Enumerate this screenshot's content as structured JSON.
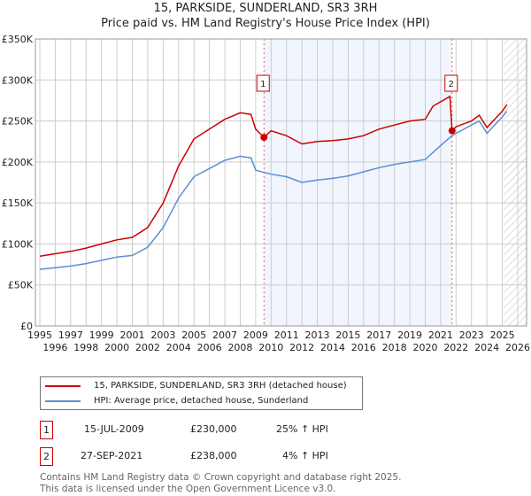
{
  "chart_data": {
    "type": "line",
    "title": "15, PARKSIDE, SUNDERLAND, SR3 3RH",
    "subtitle": "Price paid vs. HM Land Registry's House Price Index (HPI)",
    "xlim": [
      1995,
      2026
    ],
    "ylim": [
      0,
      350000
    ],
    "x_ticks": [
      "1995",
      "1996",
      "1997",
      "1998",
      "1999",
      "2000",
      "2001",
      "2002",
      "2003",
      "2004",
      "2005",
      "2006",
      "2007",
      "2008",
      "2009",
      "2010",
      "2011",
      "2012",
      "2013",
      "2014",
      "2015",
      "2016",
      "2017",
      "2018",
      "2019",
      "2020",
      "2021",
      "2022",
      "2023",
      "2024",
      "2025",
      "2026"
    ],
    "y_ticks": [
      {
        "v": 0,
        "label": "£0"
      },
      {
        "v": 50000,
        "label": "£50K"
      },
      {
        "v": 100000,
        "label": "£100K"
      },
      {
        "v": 150000,
        "label": "£150K"
      },
      {
        "v": 200000,
        "label": "£200K"
      },
      {
        "v": 250000,
        "label": "£250K"
      },
      {
        "v": 300000,
        "label": "£300K"
      },
      {
        "v": 350000,
        "label": "£350K"
      }
    ],
    "grid": true,
    "shaded_range": [
      2009.54,
      2021.74
    ],
    "forecast_hatch_from": 2025.1,
    "series": [
      {
        "name": "15, PARKSIDE, SUNDERLAND, SR3 3RH (detached house)",
        "color": "#cc0000",
        "x": [
          1995,
          1996,
          1997,
          1998,
          1999,
          2000,
          2001,
          2002,
          2003,
          2004,
          2005,
          2006,
          2007,
          2008,
          2008.7,
          2009,
          2009.54,
          2010,
          2011,
          2012,
          2013,
          2014,
          2015,
          2016,
          2017,
          2018,
          2019,
          2020,
          2020.5,
          2021.6,
          2021.74,
          2022,
          2023,
          2023.5,
          2024,
          2025,
          2025.3
        ],
        "y": [
          85000,
          88000,
          91000,
          95000,
          100000,
          105000,
          108000,
          120000,
          150000,
          195000,
          228000,
          240000,
          252000,
          260000,
          258000,
          240000,
          230000,
          238000,
          232000,
          222000,
          225000,
          226000,
          228000,
          232000,
          240000,
          245000,
          250000,
          252000,
          268000,
          280000,
          238000,
          243000,
          250000,
          257000,
          242000,
          262000,
          270000
        ]
      },
      {
        "name": "HPI: Average price, detached house, Sunderland",
        "color": "#5b8fd4",
        "x": [
          1995,
          1996,
          1997,
          1998,
          1999,
          2000,
          2001,
          2002,
          2003,
          2004,
          2005,
          2006,
          2007,
          2008,
          2008.7,
          2009,
          2010,
          2011,
          2012,
          2013,
          2014,
          2015,
          2016,
          2017,
          2018,
          2019,
          2020,
          2021,
          2021.74,
          2022,
          2023,
          2023.5,
          2024,
          2025,
          2025.3
        ],
        "y": [
          69000,
          71000,
          73000,
          76000,
          80000,
          84000,
          86000,
          96000,
          120000,
          156000,
          182000,
          192000,
          202000,
          207000,
          205000,
          190000,
          185000,
          182000,
          175000,
          178000,
          180000,
          183000,
          188000,
          193000,
          197000,
          200000,
          203000,
          220000,
          232000,
          235000,
          245000,
          250000,
          235000,
          255000,
          262000
        ]
      }
    ],
    "annotations": [
      {
        "label": "1",
        "x": 2009.54,
        "y": 230000
      },
      {
        "label": "2",
        "x": 2021.74,
        "y": 238000
      }
    ]
  },
  "legend": {
    "items": [
      "15, PARKSIDE, SUNDERLAND, SR3 3RH (detached house)",
      "HPI: Average price, detached house, Sunderland"
    ]
  },
  "transactions": [
    {
      "num": "1",
      "date": "15-JUL-2009",
      "price": "£230,000",
      "hpi": "25% ↑ HPI"
    },
    {
      "num": "2",
      "date": "27-SEP-2021",
      "price": "£238,000",
      "hpi": "4% ↑ HPI"
    }
  ],
  "footer": [
    "Contains HM Land Registry data © Crown copyright and database right 2025.",
    "This data is licensed under the Open Government Licence v3.0."
  ]
}
